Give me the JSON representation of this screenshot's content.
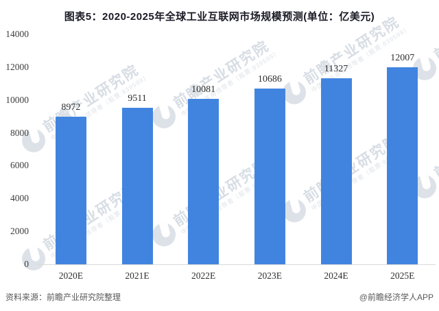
{
  "title": "图表5：2020-2025年全球工业互联网市场规模预测(单位：亿美元)",
  "chart_data": {
    "type": "bar",
    "categories": [
      "2020E",
      "2021E",
      "2022E",
      "2023E",
      "2024E",
      "2025E"
    ],
    "values": [
      8972,
      9511,
      10081,
      10686,
      11327,
      12007
    ],
    "title": "图表5：2020-2025年全球工业互联网市场规模预测(单位：亿美元)",
    "xlabel": "",
    "ylabel": "",
    "ylim": [
      0,
      14000
    ],
    "y_ticks": [
      0,
      2000,
      4000,
      6000,
      8000,
      10000,
      12000,
      14000
    ],
    "bar_color": "#4184DF",
    "grid": false,
    "legend": false
  },
  "watermark": {
    "text": "前瞻产业研究院",
    "subtext": "中国产业咨询领导者（股票:839599）"
  },
  "footer": {
    "source": "资料来源：前瞻产业研究院整理",
    "credit": "@前瞻经济学人APP"
  }
}
